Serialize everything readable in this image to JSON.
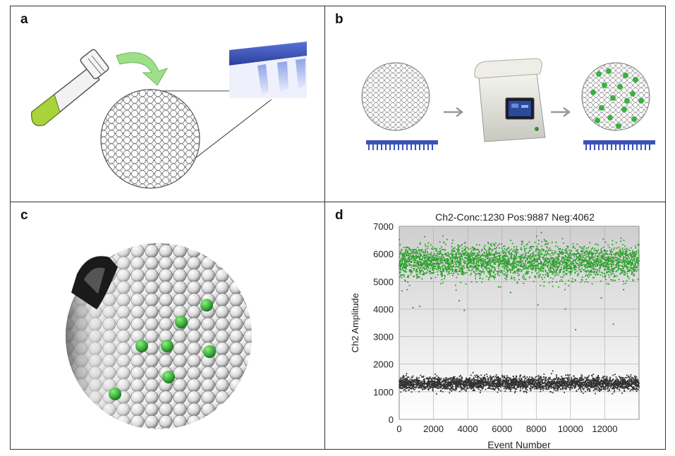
{
  "panels": {
    "a": {
      "label": "a"
    },
    "b": {
      "label": "b"
    },
    "c": {
      "label": "c"
    },
    "d": {
      "label": "d"
    }
  },
  "colors": {
    "green": "#3cb043",
    "negative": "#333333",
    "plate_blue": "#3a52b8",
    "liquid_green": "#9acd32"
  },
  "icons": {
    "a": [
      "sample-tube-icon",
      "curved-arrow-icon",
      "droplet-field-icon",
      "well-plate-icon"
    ],
    "b": [
      "droplet-field-icon",
      "thermal-cycler-icon",
      "droplet-field-positive-icon",
      "plate-strip-icon"
    ],
    "c": [
      "droplet-reader-nozzle-icon",
      "droplet-stream-icon"
    ]
  },
  "chart_data": {
    "type": "scatter",
    "title": "Ch2-Conc:1230 Pos:9887 Neg:4062",
    "xlabel": "Event Number",
    "ylabel": "Ch2 Amplitude",
    "xlim": [
      0,
      14000
    ],
    "ylim": [
      0,
      7000
    ],
    "xticks": [
      "0",
      "2000",
      "4000",
      "6000",
      "8000",
      "10000",
      "12000"
    ],
    "yticks": [
      "0",
      "1000",
      "2000",
      "3000",
      "4000",
      "5000",
      "6000",
      "7000"
    ],
    "grid": true,
    "series": [
      {
        "name": "Pos",
        "color": "#2ca02c",
        "count": 9887,
        "center": 5700,
        "spread": 300,
        "x_range": [
          0,
          14000
        ]
      },
      {
        "name": "Neg",
        "color": "#333333",
        "count": 4062,
        "center": 1300,
        "spread": 120,
        "x_range": [
          0,
          14000
        ]
      }
    ],
    "outliers": [
      {
        "x": 800,
        "y": 4050
      },
      {
        "x": 1200,
        "y": 4100
      },
      {
        "x": 3500,
        "y": 4300
      },
      {
        "x": 3800,
        "y": 3950
      },
      {
        "x": 5800,
        "y": 4800
      },
      {
        "x": 6500,
        "y": 4600
      },
      {
        "x": 8100,
        "y": 4150
      },
      {
        "x": 9700,
        "y": 4000
      },
      {
        "x": 10300,
        "y": 3250
      },
      {
        "x": 11800,
        "y": 4400
      },
      {
        "x": 12500,
        "y": 3450
      },
      {
        "x": 13100,
        "y": 4700
      }
    ]
  }
}
